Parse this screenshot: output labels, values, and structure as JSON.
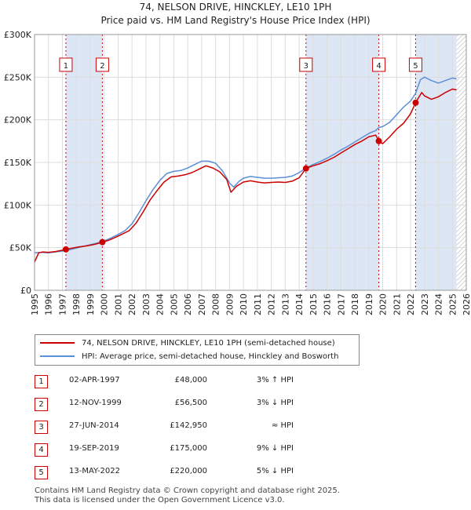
{
  "title_line1": "74, NELSON DRIVE, HINCKLEY, LE10 1PH",
  "title_line2": "Price paid vs. HM Land Registry's House Price Index (HPI)",
  "colors": {
    "price_paid": "#cc0000",
    "hpi": "#5b8fd6",
    "shade": "#dde6f5",
    "grid": "#dddddd",
    "marker_line": "#cc0000"
  },
  "chart_data": {
    "type": "line",
    "title": "Price paid vs. HM Land Registry's House Price Index (HPI)",
    "xlabel": "",
    "ylabel": "",
    "xlim": [
      1995,
      2026
    ],
    "ylim": [
      0,
      300000
    ],
    "x_ticks": [
      "1995",
      "1996",
      "1997",
      "1998",
      "1999",
      "2000",
      "2001",
      "2002",
      "2003",
      "2004",
      "2005",
      "2006",
      "2007",
      "2008",
      "2009",
      "2010",
      "2011",
      "2012",
      "2013",
      "2014",
      "2015",
      "2016",
      "2017",
      "2018",
      "2019",
      "2020",
      "2021",
      "2022",
      "2023",
      "2024",
      "2025",
      "2026"
    ],
    "y_ticks": [
      {
        "value": 0,
        "label": "£0"
      },
      {
        "value": 50000,
        "label": "£50K"
      },
      {
        "value": 100000,
        "label": "£100K"
      },
      {
        "value": 150000,
        "label": "£150K"
      },
      {
        "value": 200000,
        "label": "£200K"
      },
      {
        "value": 250000,
        "label": "£250K"
      },
      {
        "value": 300000,
        "label": "£300K"
      }
    ],
    "series": [
      {
        "name": "74, NELSON DRIVE, HINCKLEY, LE10 1PH (semi-detached house)",
        "color": "#cc0000",
        "points": [
          [
            1995.0,
            33000
          ],
          [
            1995.3,
            44000
          ],
          [
            1995.6,
            45000
          ],
          [
            1996.0,
            44500
          ],
          [
            1996.5,
            45500
          ],
          [
            1997.0,
            47000
          ],
          [
            1997.25,
            48000
          ],
          [
            1997.7,
            49500
          ],
          [
            1998.2,
            51000
          ],
          [
            1998.7,
            52000
          ],
          [
            1999.2,
            53500
          ],
          [
            1999.6,
            55000
          ],
          [
            1999.87,
            56500
          ],
          [
            2000.3,
            58500
          ],
          [
            2000.8,
            62000
          ],
          [
            2001.3,
            66000
          ],
          [
            2001.8,
            70000
          ],
          [
            2002.3,
            79000
          ],
          [
            2002.8,
            92000
          ],
          [
            2003.3,
            106000
          ],
          [
            2003.8,
            117000
          ],
          [
            2004.3,
            127000
          ],
          [
            2004.8,
            133000
          ],
          [
            2005.3,
            134000
          ],
          [
            2005.8,
            135500
          ],
          [
            2006.3,
            138000
          ],
          [
            2006.8,
            142000
          ],
          [
            2007.3,
            146000
          ],
          [
            2007.8,
            143500
          ],
          [
            2008.3,
            139000
          ],
          [
            2008.8,
            130000
          ],
          [
            2009.1,
            115000
          ],
          [
            2009.5,
            122000
          ],
          [
            2010.0,
            127000
          ],
          [
            2010.5,
            128500
          ],
          [
            2011.0,
            127000
          ],
          [
            2011.5,
            126000
          ],
          [
            2012.0,
            126500
          ],
          [
            2012.5,
            127000
          ],
          [
            2013.0,
            126500
          ],
          [
            2013.5,
            128000
          ],
          [
            2014.0,
            132000
          ],
          [
            2014.49,
            142950
          ],
          [
            2015.0,
            146000
          ],
          [
            2015.5,
            148500
          ],
          [
            2016.0,
            152000
          ],
          [
            2016.5,
            156000
          ],
          [
            2017.0,
            161000
          ],
          [
            2017.5,
            166000
          ],
          [
            2018.0,
            171000
          ],
          [
            2018.5,
            175000
          ],
          [
            2019.0,
            180000
          ],
          [
            2019.5,
            182000
          ],
          [
            2019.72,
            175000
          ],
          [
            2020.0,
            172000
          ],
          [
            2020.5,
            180000
          ],
          [
            2021.0,
            189000
          ],
          [
            2021.5,
            196000
          ],
          [
            2022.0,
            207000
          ],
          [
            2022.36,
            220000
          ],
          [
            2022.8,
            232000
          ],
          [
            2023.0,
            228000
          ],
          [
            2023.5,
            224000
          ],
          [
            2024.0,
            227000
          ],
          [
            2024.5,
            232000
          ],
          [
            2025.0,
            236000
          ],
          [
            2025.3,
            235000
          ]
        ]
      },
      {
        "name": "HPI: Average price, semi-detached house, Hinckley and Bosworth",
        "color": "#5b8fd6",
        "points": [
          [
            1995.0,
            44000
          ],
          [
            1995.5,
            44500
          ],
          [
            1996.0,
            44000
          ],
          [
            1996.5,
            45000
          ],
          [
            1997.0,
            46000
          ],
          [
            1997.5,
            47500
          ],
          [
            1998.0,
            49500
          ],
          [
            1998.5,
            51500
          ],
          [
            1999.0,
            53500
          ],
          [
            1999.5,
            55500
          ],
          [
            2000.0,
            58000
          ],
          [
            2000.5,
            61500
          ],
          [
            2001.0,
            65500
          ],
          [
            2001.5,
            70000
          ],
          [
            2002.0,
            78000
          ],
          [
            2002.5,
            91000
          ],
          [
            2003.0,
            105000
          ],
          [
            2003.5,
            118000
          ],
          [
            2004.0,
            129000
          ],
          [
            2004.5,
            137000
          ],
          [
            2005.0,
            139500
          ],
          [
            2005.5,
            140500
          ],
          [
            2006.0,
            143500
          ],
          [
            2006.5,
            147500
          ],
          [
            2007.0,
            151500
          ],
          [
            2007.5,
            151500
          ],
          [
            2008.0,
            149000
          ],
          [
            2008.5,
            140000
          ],
          [
            2009.0,
            126000
          ],
          [
            2009.3,
            121000
          ],
          [
            2009.7,
            128000
          ],
          [
            2010.0,
            131500
          ],
          [
            2010.5,
            133500
          ],
          [
            2011.0,
            132500
          ],
          [
            2011.5,
            131500
          ],
          [
            2012.0,
            131500
          ],
          [
            2012.5,
            132000
          ],
          [
            2013.0,
            132500
          ],
          [
            2013.5,
            134000
          ],
          [
            2014.0,
            138000
          ],
          [
            2014.5,
            143500
          ],
          [
            2015.0,
            147500
          ],
          [
            2015.5,
            151000
          ],
          [
            2016.0,
            155000
          ],
          [
            2016.5,
            159500
          ],
          [
            2017.0,
            164500
          ],
          [
            2017.5,
            169000
          ],
          [
            2018.0,
            174000
          ],
          [
            2018.5,
            179000
          ],
          [
            2019.0,
            184000
          ],
          [
            2019.5,
            187500
          ],
          [
            2019.72,
            191000
          ],
          [
            2020.0,
            192000
          ],
          [
            2020.5,
            197000
          ],
          [
            2021.0,
            206000
          ],
          [
            2021.5,
            215000
          ],
          [
            2022.0,
            222000
          ],
          [
            2022.36,
            231000
          ],
          [
            2022.7,
            247000
          ],
          [
            2023.0,
            250000
          ],
          [
            2023.5,
            246000
          ],
          [
            2024.0,
            243000
          ],
          [
            2024.5,
            246000
          ],
          [
            2025.0,
            249000
          ],
          [
            2025.3,
            248000
          ]
        ]
      }
    ],
    "markers": [
      {
        "label": "1",
        "x": 1997.25,
        "value": 48000
      },
      {
        "label": "2",
        "x": 1999.87,
        "value": 56500
      },
      {
        "label": "3",
        "x": 2014.49,
        "value": 142950
      },
      {
        "label": "4",
        "x": 2019.72,
        "value": 175000
      },
      {
        "label": "5",
        "x": 2022.36,
        "value": 220000
      }
    ],
    "shaded_ranges": [
      [
        1997.25,
        1999.87
      ],
      [
        2014.49,
        2019.72
      ],
      [
        2022.36,
        2025.3
      ]
    ],
    "hatched_range": [
      2025.3,
      2026
    ],
    "legend_position": "bottom-left"
  },
  "legend": [
    {
      "label": "74, NELSON DRIVE, HINCKLEY, LE10 1PH (semi-detached house)",
      "color": "#cc0000"
    },
    {
      "label": "HPI: Average price, semi-detached house, Hinckley and Bosworth",
      "color": "#5b8fd6"
    }
  ],
  "transactions": [
    {
      "num": "1",
      "date": "02-APR-1997",
      "price": "£48,000",
      "hpi": "3% ↑ HPI"
    },
    {
      "num": "2",
      "date": "12-NOV-1999",
      "price": "£56,500",
      "hpi": "3% ↓ HPI"
    },
    {
      "num": "3",
      "date": "27-JUN-2014",
      "price": "£142,950",
      "hpi": "≈ HPI"
    },
    {
      "num": "4",
      "date": "19-SEP-2019",
      "price": "£175,000",
      "hpi": "9% ↓ HPI"
    },
    {
      "num": "5",
      "date": "13-MAY-2022",
      "price": "£220,000",
      "hpi": "5% ↓ HPI"
    }
  ],
  "footer_line1": "Contains HM Land Registry data © Crown copyright and database right 2025.",
  "footer_line2": "This data is licensed under the Open Government Licence v3.0."
}
